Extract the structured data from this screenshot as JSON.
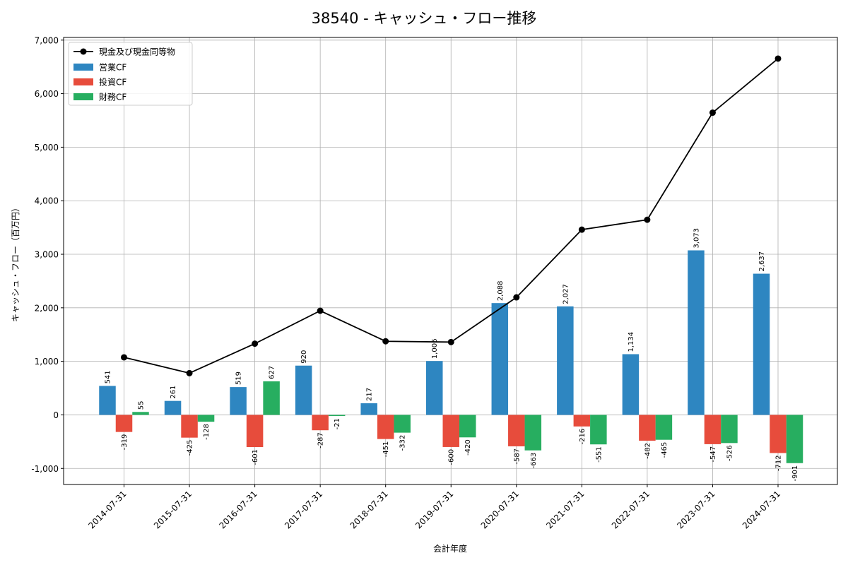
{
  "chart_data": {
    "type": "bar",
    "title": "38540 - キャッシュ・フロー推移",
    "xlabel": "会計年度",
    "ylabel": "キャッシュ・フロー（百万円）",
    "ylim": [
      -1300,
      7050
    ],
    "yticks": [
      -1000,
      0,
      1000,
      2000,
      3000,
      4000,
      5000,
      6000,
      7000
    ],
    "ytick_labels": [
      "-1,000",
      "0",
      "1,000",
      "2,000",
      "3,000",
      "4,000",
      "5,000",
      "6,000",
      "7,000"
    ],
    "grid": true,
    "legend_position": "top-left",
    "categories": [
      "2014-07-31",
      "2015-07-31",
      "2016-07-31",
      "2017-07-31",
      "2018-07-31",
      "2019-07-31",
      "2020-07-31",
      "2021-07-31",
      "2022-07-31",
      "2023-07-31",
      "2024-07-31"
    ],
    "series": [
      {
        "name": "営業CF",
        "kind": "bar",
        "color": "#2e86c1",
        "values": [
          541,
          261,
          519,
          920,
          217,
          1006,
          2088,
          2027,
          1134,
          3073,
          2637
        ],
        "labels": [
          "541",
          "261",
          "519",
          "920",
          "217",
          "1,006",
          "2,088",
          "2,027",
          "1,134",
          "3,073",
          "2,637"
        ]
      },
      {
        "name": "投資CF",
        "kind": "bar",
        "color": "#e74c3c",
        "values": [
          -319,
          -425,
          -601,
          -287,
          -451,
          -600,
          -587,
          -216,
          -482,
          -547,
          -712
        ],
        "labels": [
          "-319",
          "-425",
          "-601",
          "-287",
          "-451",
          "-600",
          "-587",
          "-216",
          "-482",
          "-547",
          "-712"
        ]
      },
      {
        "name": "財務CF",
        "kind": "bar",
        "color": "#27ae60",
        "values": [
          55,
          -128,
          627,
          -21,
          -332,
          -420,
          -663,
          -551,
          -465,
          -526,
          -901
        ],
        "labels": [
          "55",
          "-128",
          "627",
          "-21",
          "-332",
          "-420",
          "-663",
          "-551",
          "-465",
          "-526",
          "-901"
        ]
      }
    ],
    "line": {
      "name": "現金及び現金同等物",
      "color": "#000000",
      "values": [
        1075,
        780,
        1330,
        1945,
        1375,
        1360,
        2195,
        3460,
        3645,
        5645,
        6655
      ]
    }
  }
}
